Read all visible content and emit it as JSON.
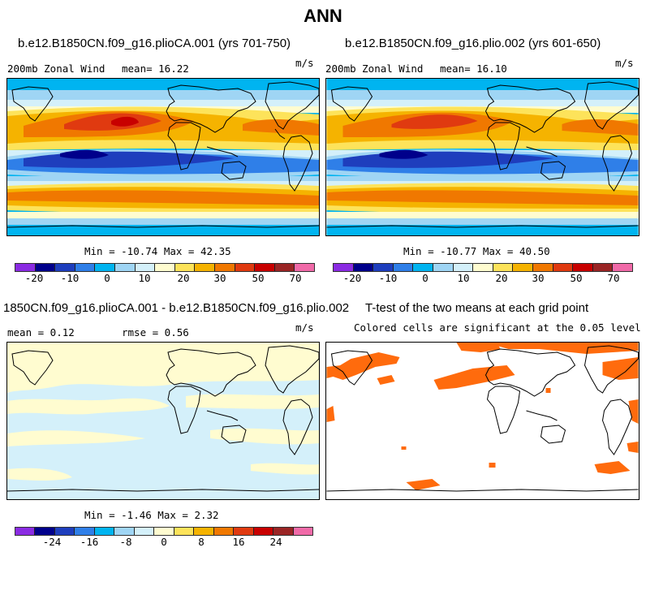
{
  "figure": {
    "title": "ANN"
  },
  "panels": {
    "p1": {
      "title": "b.e12.B1850CN.f09_g16.plioCA.001 (yrs 701-750)",
      "variable": "200mb Zonal Wind",
      "mean_text": "mean=  16.22",
      "units": "m/s",
      "minmax": "Min = -10.74 Max =  42.35",
      "cbar_labels": [
        "-20",
        "-10",
        "0",
        "10",
        "20",
        "30",
        "50",
        "70"
      ]
    },
    "p2": {
      "title": "b.e12.B1850CN.f09_g16.plio.002 (yrs 601-650)",
      "variable": "200mb Zonal Wind",
      "mean_text": "mean=  16.10",
      "units": "m/s",
      "minmax": "Min = -10.77 Max =  40.50",
      "cbar_labels": [
        "-20",
        "-10",
        "0",
        "10",
        "20",
        "30",
        "50",
        "70"
      ]
    },
    "p3": {
      "title": "1850CN.f09_g16.plioCA.001 - b.e12.B1850CN.f09_g16.plio.002",
      "mean_text": "mean =   0.12",
      "rmse_text": "rmse =   0.56",
      "units": "m/s",
      "minmax": "Min = -1.46 Max =  2.32",
      "cbar_labels": [
        "-24",
        "-16",
        "-8",
        "0",
        "8",
        "16",
        "24"
      ]
    },
    "p4": {
      "title": "T-test of the two means at each grid point",
      "subtitle": "Colored cells are significant at the 0.05 level"
    }
  },
  "colors": {
    "wind_palette": [
      "#8a2be2",
      "#00008b",
      "#1e3ebd",
      "#2f7fe8",
      "#00b4f0",
      "#9fd5f4",
      "#d4f0fa",
      "#fffcd0",
      "#fde35a",
      "#f5b300",
      "#f07800",
      "#e03a10",
      "#c80000",
      "#9a2525",
      "#f06aa8"
    ],
    "diff_palette": [
      "#8a2be2",
      "#00008b",
      "#1e3ebd",
      "#2f7fe8",
      "#00b4f0",
      "#9fd5f4",
      "#d4f0fa",
      "#fffcd0",
      "#fde35a",
      "#f5b300",
      "#f07800",
      "#e03a10",
      "#c80000",
      "#9a2525",
      "#f06aa8"
    ],
    "significant": "#ff6b0d"
  }
}
